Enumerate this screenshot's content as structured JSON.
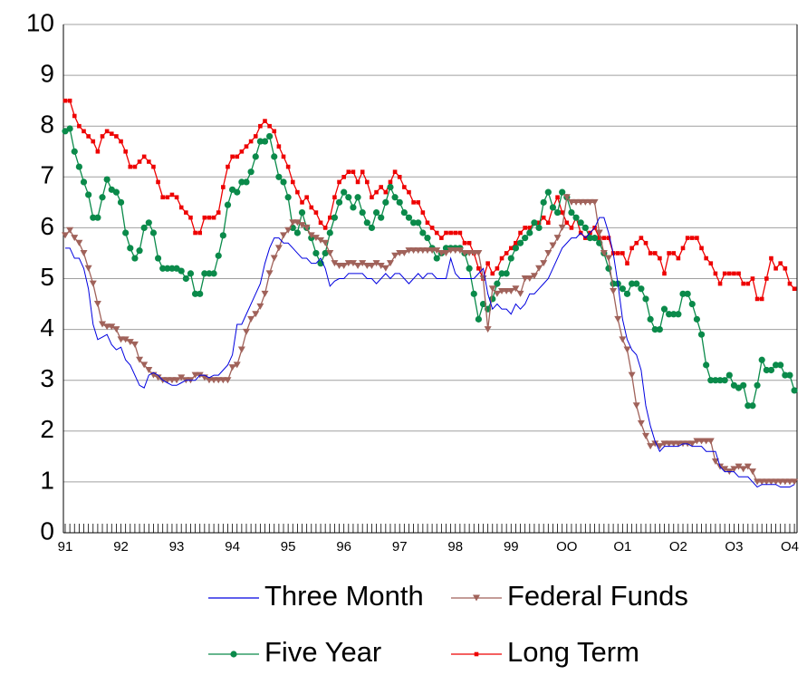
{
  "chart_data": {
    "type": "line",
    "categories": [
      "91",
      null,
      null,
      null,
      null,
      null,
      null,
      null,
      null,
      null,
      null,
      null,
      "92",
      null,
      null,
      null,
      null,
      null,
      null,
      null,
      null,
      null,
      null,
      null,
      "93",
      null,
      null,
      null,
      null,
      null,
      null,
      null,
      null,
      null,
      null,
      null,
      "94",
      null,
      null,
      null,
      null,
      null,
      null,
      null,
      null,
      null,
      null,
      null,
      "95",
      null,
      null,
      null,
      null,
      null,
      null,
      null,
      null,
      null,
      null,
      null,
      "96",
      null,
      null,
      null,
      null,
      null,
      null,
      null,
      null,
      null,
      null,
      null,
      "97",
      null,
      null,
      null,
      null,
      null,
      null,
      null,
      null,
      null,
      null,
      null,
      "98",
      null,
      null,
      null,
      null,
      null,
      null,
      null,
      null,
      null,
      null,
      null,
      "99",
      null,
      null,
      null,
      null,
      null,
      null,
      null,
      null,
      null,
      null,
      null,
      "OO",
      null,
      null,
      null,
      null,
      null,
      null,
      null,
      null,
      null,
      null,
      null,
      "O1",
      null,
      null,
      null,
      null,
      null,
      null,
      null,
      null,
      null,
      null,
      null,
      "O2",
      null,
      null,
      null,
      null,
      null,
      null,
      null,
      null,
      null,
      null,
      null,
      "O3",
      null,
      null,
      null,
      null,
      null,
      null,
      null,
      null,
      null,
      null,
      null,
      "O4",
      null
    ],
    "ylim": [
      0,
      10
    ],
    "yticks": [
      0,
      1,
      2,
      3,
      4,
      5,
      6,
      7,
      8,
      9,
      10
    ],
    "grid": true,
    "series": [
      {
        "name": "Three Month",
        "color": "#0000e0",
        "marker": "none",
        "values": [
          5.6,
          5.6,
          5.4,
          5.4,
          5.2,
          4.8,
          4.1,
          3.8,
          3.85,
          3.9,
          3.7,
          3.6,
          3.65,
          3.4,
          3.3,
          3.1,
          2.9,
          2.85,
          3.1,
          3.15,
          3.1,
          3.0,
          2.95,
          2.9,
          2.9,
          2.95,
          3.0,
          3.0,
          3.0,
          3.1,
          3.1,
          3.05,
          3.1,
          3.1,
          3.2,
          3.3,
          3.5,
          4.1,
          4.1,
          4.3,
          4.5,
          4.7,
          4.9,
          5.3,
          5.6,
          5.8,
          5.8,
          5.7,
          5.7,
          5.6,
          5.5,
          5.4,
          5.4,
          5.3,
          5.3,
          5.4,
          5.2,
          4.85,
          4.95,
          5.0,
          5.0,
          5.1,
          5.1,
          5.1,
          5.1,
          5.0,
          5.0,
          4.9,
          5.0,
          5.1,
          5.0,
          5.1,
          5.1,
          5.0,
          4.9,
          5.0,
          5.1,
          5.0,
          5.1,
          5.1,
          5.0,
          5.0,
          5.0,
          5.4,
          5.1,
          5.0,
          5.0,
          5.0,
          5.0,
          5.1,
          5.2,
          4.7,
          4.4,
          4.5,
          4.4,
          4.4,
          4.3,
          4.5,
          4.4,
          4.5,
          4.7,
          4.7,
          4.8,
          4.9,
          5.0,
          5.2,
          5.4,
          5.6,
          5.7,
          5.8,
          5.8,
          5.9,
          5.8,
          5.9,
          6.0,
          6.2,
          6.2,
          5.9,
          5.5,
          4.9,
          4.2,
          3.8,
          3.6,
          3.5,
          3.2,
          2.5,
          2.1,
          1.8,
          1.6,
          1.7,
          1.7,
          1.7,
          1.7,
          1.75,
          1.75,
          1.7,
          1.7,
          1.7,
          1.6,
          1.6,
          1.6,
          1.3,
          1.2,
          1.2,
          1.2,
          1.1,
          1.1,
          1.1,
          1.0,
          0.9,
          0.95,
          0.95,
          0.95,
          0.95,
          0.9,
          0.9,
          0.9,
          0.95
        ]
      },
      {
        "name": "Federal Funds",
        "color": "#a0625a",
        "marker": "triangle",
        "values": [
          5.85,
          5.95,
          5.8,
          5.7,
          5.5,
          5.2,
          4.9,
          4.5,
          4.1,
          4.05,
          4.05,
          4.0,
          3.8,
          3.8,
          3.75,
          3.7,
          3.4,
          3.3,
          3.2,
          3.1,
          3.05,
          3.0,
          3.0,
          3.0,
          3.0,
          3.05,
          3.0,
          3.0,
          3.1,
          3.1,
          3.05,
          3.0,
          3.0,
          3.0,
          3.0,
          3.0,
          3.25,
          3.3,
          3.6,
          3.95,
          4.2,
          4.3,
          4.45,
          4.7,
          5.1,
          5.4,
          5.6,
          5.85,
          5.95,
          6.1,
          6.1,
          6.05,
          6.0,
          5.85,
          5.8,
          5.75,
          5.7,
          5.5,
          5.3,
          5.25,
          5.25,
          5.3,
          5.3,
          5.25,
          5.3,
          5.25,
          5.25,
          5.3,
          5.25,
          5.2,
          5.3,
          5.45,
          5.5,
          5.5,
          5.55,
          5.55,
          5.55,
          5.55,
          5.55,
          5.55,
          5.55,
          5.5,
          5.5,
          5.55,
          5.55,
          5.55,
          5.5,
          5.5,
          5.5,
          5.5,
          5.0,
          4.0,
          4.8,
          4.7,
          4.75,
          4.75,
          4.75,
          4.8,
          4.7,
          5.0,
          5.0,
          5.05,
          5.2,
          5.3,
          5.5,
          5.65,
          5.8,
          6.0,
          6.6,
          6.5,
          6.5,
          6.5,
          6.5,
          6.5,
          6.5,
          5.9,
          5.5,
          5.4,
          4.75,
          4.2,
          3.8,
          3.6,
          3.1,
          2.5,
          2.15,
          1.9,
          1.7,
          1.75,
          1.7,
          1.75,
          1.75,
          1.75,
          1.75,
          1.75,
          1.75,
          1.75,
          1.8,
          1.8,
          1.8,
          1.8,
          1.4,
          1.3,
          1.25,
          1.2,
          1.25,
          1.3,
          1.25,
          1.3,
          1.2,
          1.0,
          1.0,
          1.0,
          1.0,
          1.0,
          1.0,
          1.0,
          1.0,
          1.0
        ]
      },
      {
        "name": "Five Year",
        "color": "#0a8a4a",
        "marker": "circle",
        "values": [
          7.9,
          7.95,
          7.5,
          7.2,
          6.9,
          6.65,
          6.2,
          6.2,
          6.6,
          6.95,
          6.75,
          6.7,
          6.5,
          5.9,
          5.6,
          5.4,
          5.55,
          6.0,
          6.1,
          5.9,
          5.4,
          5.2,
          5.2,
          5.2,
          5.2,
          5.15,
          5.0,
          5.1,
          4.7,
          4.7,
          5.1,
          5.1,
          5.1,
          5.45,
          5.85,
          6.45,
          6.75,
          6.7,
          6.9,
          6.9,
          7.1,
          7.4,
          7.7,
          7.7,
          7.8,
          7.4,
          7.0,
          6.9,
          6.6,
          6.0,
          5.9,
          6.3,
          6.0,
          5.8,
          5.5,
          5.3,
          5.5,
          5.9,
          6.2,
          6.5,
          6.7,
          6.6,
          6.4,
          6.6,
          6.3,
          6.1,
          6.0,
          6.3,
          6.2,
          6.5,
          6.8,
          6.6,
          6.5,
          6.3,
          6.2,
          6.1,
          6.1,
          5.9,
          5.8,
          5.6,
          5.4,
          5.5,
          5.6,
          5.6,
          5.6,
          5.6,
          5.5,
          5.2,
          4.7,
          4.2,
          4.5,
          4.4,
          4.6,
          4.9,
          5.1,
          5.1,
          5.4,
          5.6,
          5.7,
          5.8,
          5.9,
          6.1,
          6.0,
          6.5,
          6.7,
          6.4,
          6.3,
          6.7,
          6.6,
          6.3,
          6.2,
          6.1,
          6.0,
          5.8,
          5.8,
          5.7,
          5.5,
          5.2,
          4.9,
          4.9,
          4.8,
          4.7,
          4.9,
          4.9,
          4.8,
          4.6,
          4.2,
          4.0,
          4.0,
          4.4,
          4.3,
          4.3,
          4.3,
          4.7,
          4.7,
          4.5,
          4.2,
          3.9,
          3.3,
          3.0,
          3.0,
          3.0,
          3.0,
          3.1,
          2.9,
          2.85,
          2.9,
          2.5,
          2.5,
          2.9,
          3.4,
          3.2,
          3.2,
          3.3,
          3.3,
          3.1,
          3.1,
          2.8
        ]
      },
      {
        "name": "Long Term",
        "color": "#ee0000",
        "marker": "square",
        "values": [
          8.5,
          8.5,
          8.2,
          8.0,
          7.9,
          7.8,
          7.7,
          7.5,
          7.8,
          7.9,
          7.85,
          7.8,
          7.7,
          7.5,
          7.2,
          7.2,
          7.3,
          7.4,
          7.3,
          7.2,
          6.9,
          6.6,
          6.6,
          6.65,
          6.6,
          6.4,
          6.3,
          6.2,
          5.9,
          5.9,
          6.2,
          6.2,
          6.2,
          6.3,
          6.8,
          7.2,
          7.4,
          7.4,
          7.5,
          7.6,
          7.7,
          7.8,
          8.0,
          8.1,
          8.0,
          7.9,
          7.6,
          7.4,
          7.2,
          6.9,
          6.7,
          6.5,
          6.6,
          6.4,
          6.3,
          6.1,
          6.0,
          6.2,
          6.6,
          6.9,
          7.0,
          7.1,
          7.1,
          6.9,
          7.1,
          6.9,
          6.6,
          6.7,
          6.8,
          6.7,
          6.9,
          7.1,
          7.0,
          6.8,
          6.7,
          6.5,
          6.5,
          6.3,
          6.1,
          6.0,
          5.9,
          5.8,
          5.9,
          5.9,
          5.9,
          5.9,
          5.7,
          5.7,
          5.5,
          5.2,
          5.0,
          5.3,
          5.1,
          5.2,
          5.4,
          5.5,
          5.6,
          5.7,
          5.9,
          6.0,
          6.0,
          6.1,
          6.1,
          6.2,
          6.1,
          6.4,
          6.6,
          6.3,
          6.1,
          6.0,
          6.2,
          5.9,
          5.8,
          5.9,
          6.0,
          5.8,
          5.8,
          5.8,
          5.5,
          5.5,
          5.5,
          5.3,
          5.6,
          5.7,
          5.8,
          5.7,
          5.5,
          5.5,
          5.4,
          5.1,
          5.5,
          5.5,
          5.4,
          5.6,
          5.8,
          5.8,
          5.8,
          5.6,
          5.4,
          5.3,
          5.1,
          4.9,
          5.1,
          5.1,
          5.1,
          5.1,
          4.9,
          4.9,
          5.0,
          4.6,
          4.6,
          5.0,
          5.4,
          5.2,
          5.3,
          5.2,
          4.9,
          4.8
        ]
      }
    ]
  }
}
